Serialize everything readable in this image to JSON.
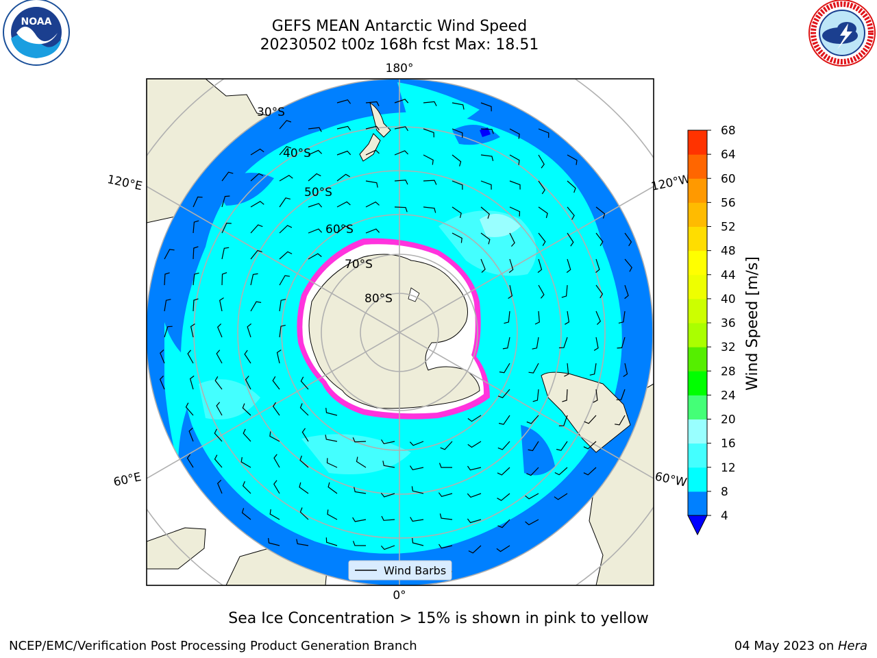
{
  "title": {
    "line1": "GEFS MEAN Antarctic Wind Speed",
    "line2": "20230502 t00z 168h fcst   Max: 18.51"
  },
  "logos": {
    "noaa": {
      "text": "NOAA",
      "icon": "noaa-logo"
    },
    "nws": {
      "icon": "nws-logo",
      "ring_text": "NATIONAL WEATHER SERVICE"
    }
  },
  "map": {
    "projection": "south-polar-stereographic",
    "longitude_labels": [
      "180°",
      "120°E",
      "120°W",
      "60°E",
      "60°W",
      "0°"
    ],
    "latitude_labels": [
      "30°S",
      "40°S",
      "50°S",
      "60°S",
      "70°S",
      "80°S"
    ],
    "legend": {
      "entry": "Wind Barbs"
    },
    "colors": {
      "land": "#eeedd9",
      "ice_sheet": "#ffffff",
      "sea_ice_edge": "#ff33dd",
      "grid": "#b0b0b0"
    }
  },
  "colorbar": {
    "label": "Wind Speed [m/s]",
    "ticks": [
      "4",
      "8",
      "12",
      "16",
      "20",
      "24",
      "28",
      "32",
      "36",
      "40",
      "44",
      "48",
      "52",
      "56",
      "60",
      "64",
      "68"
    ],
    "colors": [
      "#0080ff",
      "#00ffff",
      "#44ffff",
      "#99ffff",
      "#44ff77",
      "#00ff00",
      "#55ee00",
      "#aaff00",
      "#ccff00",
      "#eeff00",
      "#ffff00",
      "#ffdd00",
      "#ffbb00",
      "#ff9900",
      "#ff6600",
      "#ff3300"
    ],
    "under_color": "#0000ff"
  },
  "caption": "Sea Ice Concentration > 15% is shown in pink to yellow",
  "footer": {
    "left": "NCEP/EMC/Verification Post Processing Product Generation Branch",
    "date": "04 May 2023 on ",
    "host": "Hera"
  }
}
